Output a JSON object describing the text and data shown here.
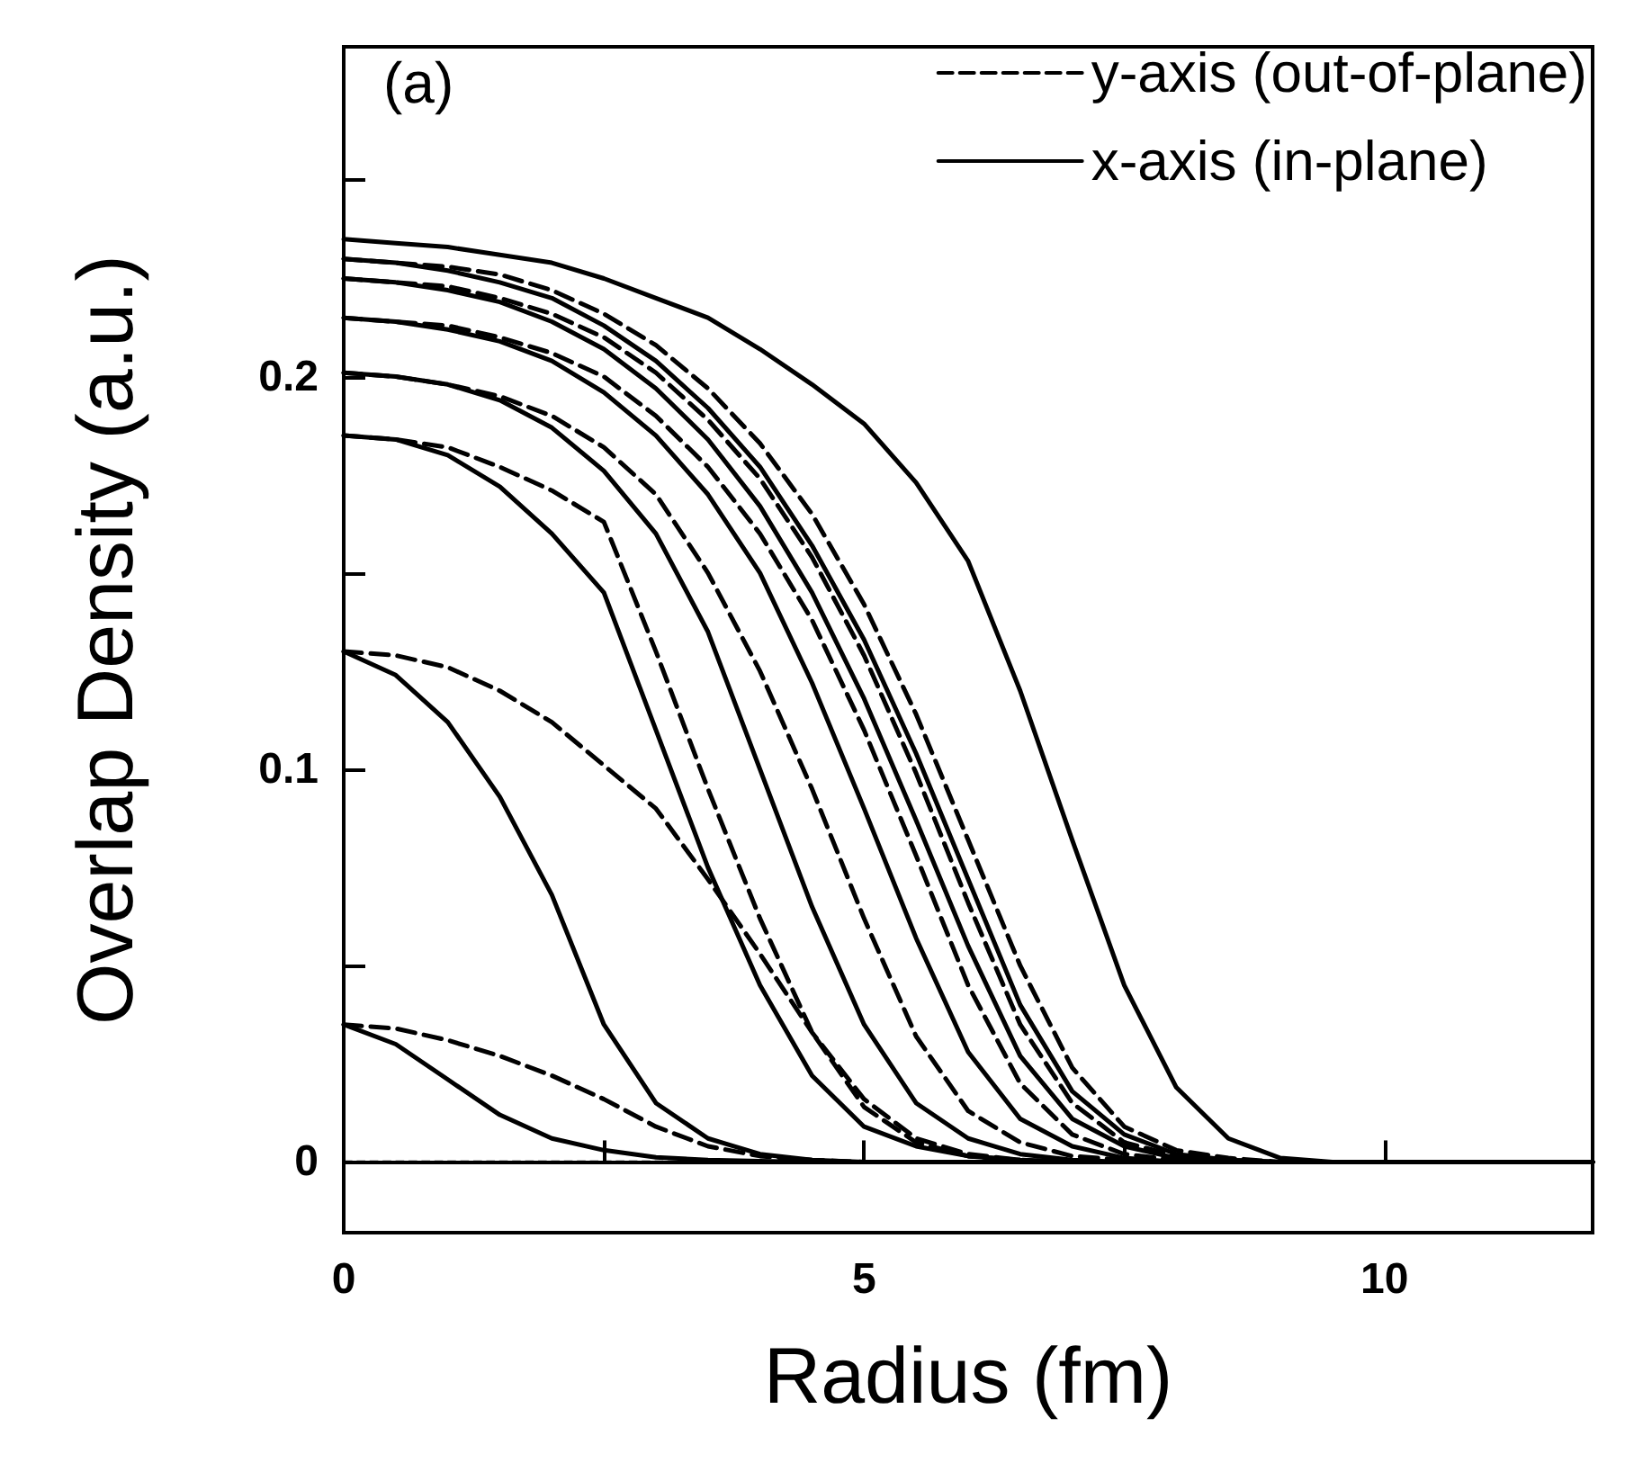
{
  "chart_data": {
    "type": "line",
    "xlabel": "Radius (fm)",
    "ylabel": "Overlap Density (a.u.)",
    "annotations": [
      "(a)"
    ],
    "x": [
      0,
      0.5,
      1,
      1.5,
      2,
      2.5,
      3,
      3.5,
      4,
      4.5,
      5,
      5.5,
      6,
      6.5,
      7,
      7.5,
      8,
      8.5,
      9,
      9.5,
      10,
      12
    ],
    "xlim": [
      0,
      12
    ],
    "xticks": [
      0,
      {
        "value": 2.5,
        "label": null
      },
      5,
      {
        "value": 7.5,
        "label": null
      },
      10
    ],
    "ylim": [
      -0.018,
      0.284
    ],
    "yticks": [
      0,
      {
        "value": 0.05,
        "label": null
      },
      0.1,
      {
        "value": 0.15,
        "label": null
      },
      0.2,
      {
        "value": 0.25,
        "label": null
      }
    ],
    "legend": "top right",
    "marker": "none",
    "grid": false,
    "ref_lines": [
      {
        "axis": "y",
        "value": 0,
        "label": null,
        "color": "#000000",
        "line_style": "dashed"
      }
    ],
    "series": [
      {
        "name": "y-axis (out-of-plane)",
        "color": "#000000",
        "line_style": "dashed",
        "values": [
          0.035,
          0.034,
          0.031,
          0.027,
          0.022,
          0.016,
          0.009,
          0.004,
          0.0015,
          0.0005,
          0,
          0,
          0,
          0,
          0,
          0,
          0,
          0,
          0,
          0,
          0,
          0
        ]
      },
      {
        "color": "#000000",
        "line_style": "dashed",
        "values": [
          0.13,
          0.129,
          0.126,
          0.12,
          0.112,
          0.101,
          0.09,
          0.072,
          0.053,
          0.033,
          0.016,
          0.006,
          0.002,
          0.0005,
          0,
          0,
          0,
          0,
          0,
          0,
          0,
          0
        ]
      },
      {
        "color": "#000000",
        "line_style": "dashed",
        "values": [
          0.185,
          0.184,
          0.182,
          0.177,
          0.171,
          0.163,
          0.13,
          0.095,
          0.062,
          0.033,
          0.014,
          0.005,
          0.0015,
          0.0005,
          0,
          0,
          0,
          0,
          0,
          0,
          0,
          0
        ]
      },
      {
        "color": "#000000",
        "line_style": "dashed",
        "values": [
          0.201,
          0.2,
          0.198,
          0.195,
          0.19,
          0.182,
          0.17,
          0.15,
          0.125,
          0.095,
          0.062,
          0.032,
          0.013,
          0.005,
          0.0015,
          0.0005,
          0,
          0,
          0,
          0,
          0,
          0
        ]
      },
      {
        "color": "#000000",
        "line_style": "dashed",
        "values": [
          0.215,
          0.214,
          0.213,
          0.21,
          0.206,
          0.2,
          0.19,
          0.177,
          0.16,
          0.138,
          0.11,
          0.078,
          0.045,
          0.02,
          0.007,
          0.002,
          0.0005,
          0,
          0,
          0,
          0,
          0
        ]
      },
      {
        "color": "#000000",
        "line_style": "dashed",
        "values": [
          0.225,
          0.224,
          0.223,
          0.22,
          0.216,
          0.21,
          0.201,
          0.189,
          0.174,
          0.154,
          0.129,
          0.099,
          0.066,
          0.035,
          0.015,
          0.005,
          0.0015,
          0.0005,
          0,
          0,
          0,
          0
        ]
      },
      {
        "color": "#000000",
        "line_style": "dashed",
        "values": [
          0.23,
          0.229,
          0.228,
          0.226,
          0.222,
          0.216,
          0.208,
          0.197,
          0.183,
          0.165,
          0.142,
          0.114,
          0.082,
          0.05,
          0.024,
          0.009,
          0.003,
          0.001,
          0,
          0,
          0,
          0
        ]
      },
      {
        "name": "x-axis (in-plane)",
        "color": "#000000",
        "line_style": "solid",
        "values": [
          0.035,
          0.03,
          0.021,
          0.012,
          0.006,
          0.003,
          0.0012,
          0.0005,
          0.0002,
          0,
          0,
          0,
          0,
          0,
          0,
          0,
          0,
          0,
          0,
          0,
          0,
          0
        ]
      },
      {
        "color": "#000000",
        "line_style": "solid",
        "values": [
          0.13,
          0.124,
          0.112,
          0.093,
          0.068,
          0.035,
          0.015,
          0.006,
          0.002,
          0.0005,
          0,
          0,
          0,
          0,
          0,
          0,
          0,
          0,
          0,
          0,
          0,
          0
        ]
      },
      {
        "color": "#000000",
        "line_style": "solid",
        "values": [
          0.185,
          0.184,
          0.18,
          0.172,
          0.16,
          0.145,
          0.11,
          0.075,
          0.045,
          0.022,
          0.009,
          0.004,
          0.0015,
          0.0005,
          0,
          0,
          0,
          0,
          0,
          0,
          0,
          0
        ]
      },
      {
        "color": "#000000",
        "line_style": "solid",
        "values": [
          0.201,
          0.2,
          0.198,
          0.194,
          0.187,
          0.176,
          0.16,
          0.135,
          0.1,
          0.065,
          0.035,
          0.015,
          0.006,
          0.002,
          0.0005,
          0,
          0,
          0,
          0,
          0,
          0,
          0
        ]
      },
      {
        "color": "#000000",
        "line_style": "solid",
        "values": [
          0.215,
          0.214,
          0.212,
          0.209,
          0.204,
          0.196,
          0.185,
          0.17,
          0.15,
          0.122,
          0.09,
          0.057,
          0.028,
          0.011,
          0.004,
          0.001,
          0,
          0,
          0,
          0,
          0,
          0
        ]
      },
      {
        "color": "#000000",
        "line_style": "solid",
        "values": [
          0.225,
          0.224,
          0.222,
          0.219,
          0.214,
          0.207,
          0.197,
          0.184,
          0.167,
          0.145,
          0.118,
          0.087,
          0.055,
          0.027,
          0.011,
          0.004,
          0.001,
          0,
          0,
          0,
          0,
          0
        ]
      },
      {
        "color": "#000000",
        "line_style": "solid",
        "values": [
          0.23,
          0.229,
          0.227,
          0.224,
          0.22,
          0.213,
          0.204,
          0.192,
          0.177,
          0.157,
          0.133,
          0.104,
          0.072,
          0.04,
          0.018,
          0.007,
          0.002,
          0.0005,
          0,
          0,
          0,
          0
        ]
      },
      {
        "color": "#000000",
        "line_style": "solid",
        "values": [
          0.235,
          0.234,
          0.233,
          0.231,
          0.229,
          0.225,
          0.22,
          0.215,
          0.207,
          0.198,
          0.188,
          0.173,
          0.153,
          0.12,
          0.082,
          0.045,
          0.019,
          0.006,
          0.001,
          0,
          0,
          0
        ]
      }
    ]
  }
}
